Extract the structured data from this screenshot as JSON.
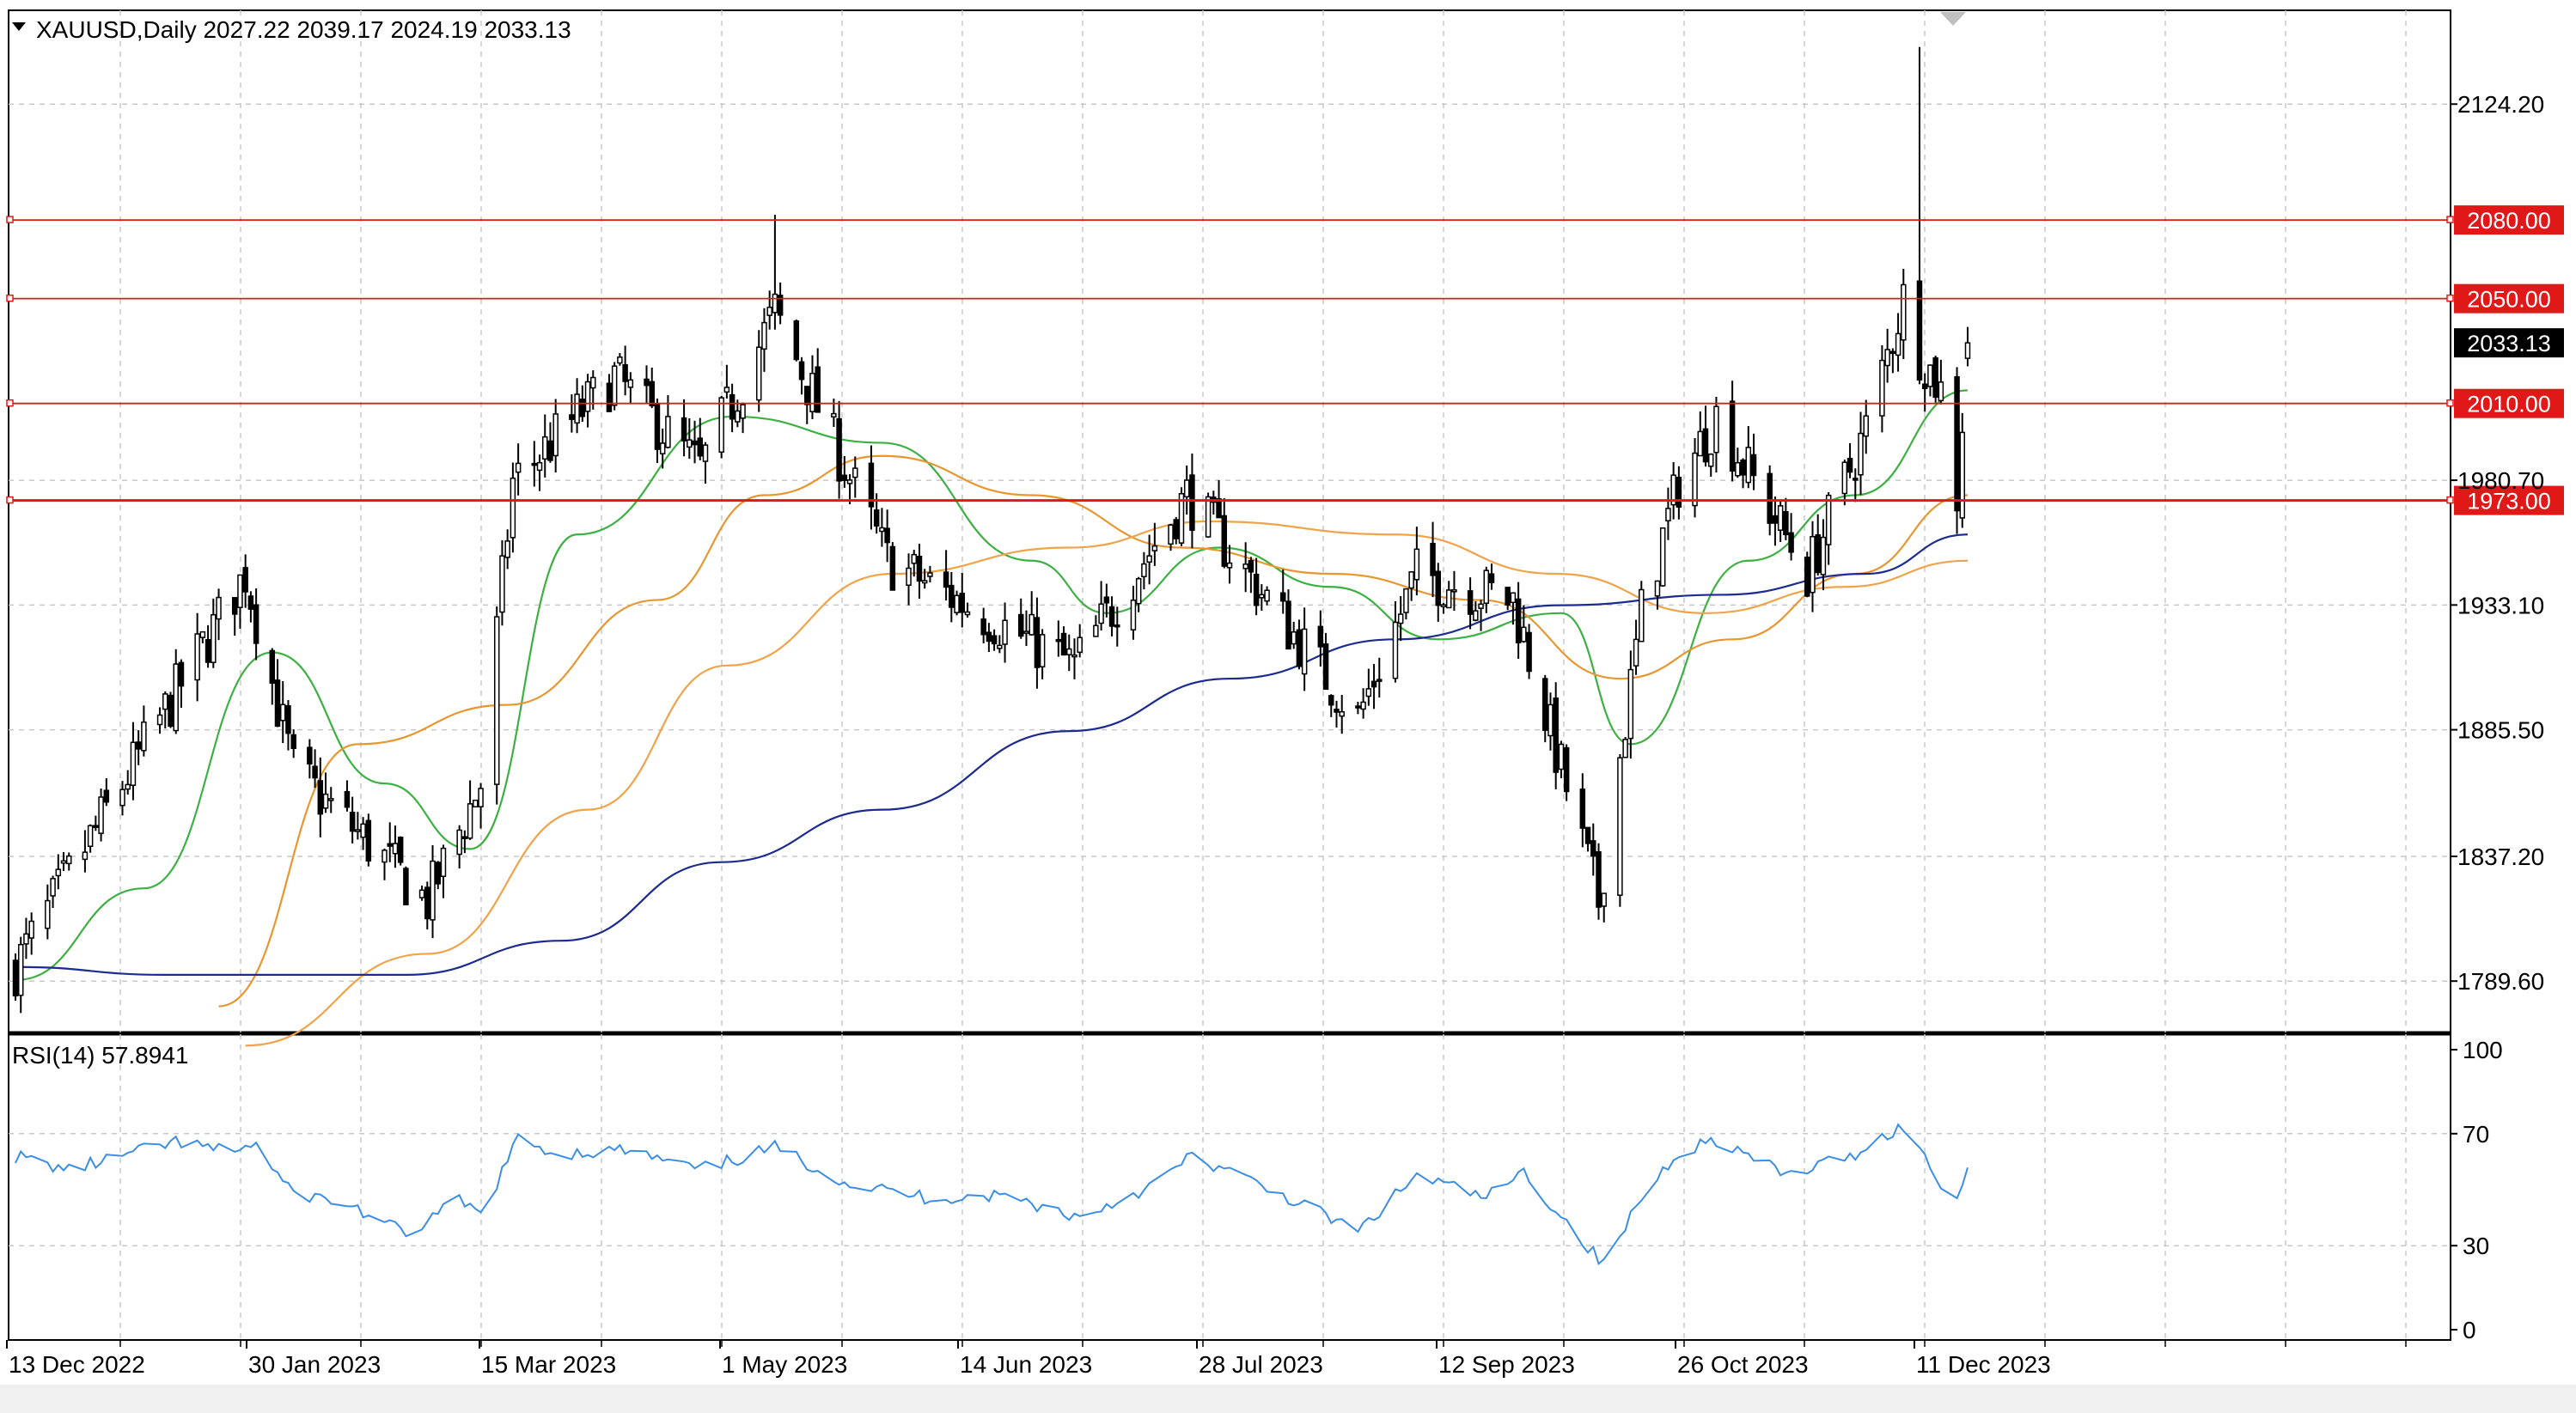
{
  "header": {
    "symbol_line": "XAUUSD,Daily  2027.22 2039.17 2024.19 2033.13"
  },
  "rsi_header": {
    "label": "RSI(14) 57.8941"
  },
  "colors": {
    "candle": "#000000",
    "sma_fast": "#3cb043",
    "sma_mid": "#e8962f",
    "sma_slow": "#f0a34a",
    "sma_long": "#1c2b8f",
    "level_line": "#e01818",
    "rsi_line": "#3a8ee6",
    "grid": "#c8c8c8"
  },
  "price_axis": {
    "ticks": [
      {
        "value": 2124.2,
        "label": "2124.20"
      },
      {
        "value": 1980.7,
        "label": "1980.70"
      },
      {
        "value": 1933.1,
        "label": "1933.10"
      },
      {
        "value": 1885.5,
        "label": "1885.50"
      },
      {
        "value": 1837.2,
        "label": "1837.20"
      },
      {
        "value": 1789.6,
        "label": "1789.60"
      }
    ],
    "current": {
      "value": 2033.13,
      "label": "2033.13"
    }
  },
  "levels": [
    {
      "value": 2080.0,
      "label": "2080.00"
    },
    {
      "value": 2050.0,
      "label": "2050.00"
    },
    {
      "value": 2010.0,
      "label": "2010.00"
    },
    {
      "value": 1973.0,
      "label": "1973.00"
    }
  ],
  "rsi_axis": {
    "ticks": [
      {
        "value": 100,
        "label": "100"
      },
      {
        "value": 70,
        "label": "70"
      },
      {
        "value": 30,
        "label": "30"
      },
      {
        "value": 0,
        "label": "0"
      }
    ]
  },
  "date_axis": {
    "ticks": [
      {
        "label": "13 Dec 2022"
      },
      {
        "label": "30 Jan 2023"
      },
      {
        "label": "15 Mar 2023"
      },
      {
        "label": "1 May 2023"
      },
      {
        "label": "14 Jun 2023"
      },
      {
        "label": "28 Jul 2023"
      },
      {
        "label": "12 Sep 2023"
      },
      {
        "label": "26 Oct 2023"
      },
      {
        "label": "11 Dec 2023"
      }
    ]
  },
  "chart_data": {
    "type": "candlestick",
    "symbol": "XAUUSD",
    "timeframe": "Daily",
    "ohlc_last": {
      "open": 2027.22,
      "high": 2039.17,
      "low": 2024.19,
      "close": 2033.13
    },
    "ylim": [
      1770,
      2160
    ],
    "x_start": "2022-12-13",
    "x_end": "2023-12-13",
    "close_anchors": [
      {
        "date": "2022-12-13",
        "close": 1795
      },
      {
        "date": "2023-01-25",
        "close": 1945
      },
      {
        "date": "2023-02-03",
        "close": 1870
      },
      {
        "date": "2023-02-28",
        "close": 1820
      },
      {
        "date": "2023-03-10",
        "close": 1865
      },
      {
        "date": "2023-03-16",
        "close": 1980
      },
      {
        "date": "2023-04-04",
        "close": 2020
      },
      {
        "date": "2023-04-20",
        "close": 1985
      },
      {
        "date": "2023-05-04",
        "close": 2045
      },
      {
        "date": "2023-05-25",
        "close": 1950
      },
      {
        "date": "2023-06-29",
        "close": 1910
      },
      {
        "date": "2023-07-20",
        "close": 1975
      },
      {
        "date": "2023-08-21",
        "close": 1890
      },
      {
        "date": "2023-09-01",
        "close": 1945
      },
      {
        "date": "2023-09-19",
        "close": 1935
      },
      {
        "date": "2023-10-05",
        "close": 1820
      },
      {
        "date": "2023-10-13",
        "close": 1930
      },
      {
        "date": "2023-10-20",
        "close": 1980
      },
      {
        "date": "2023-10-27",
        "close": 2005
      },
      {
        "date": "2023-11-13",
        "close": 1945
      },
      {
        "date": "2023-11-24",
        "close": 2000
      },
      {
        "date": "2023-12-01",
        "close": 2050
      },
      {
        "date": "2023-12-04",
        "close": 2030
      },
      {
        "date": "2023-12-08",
        "close": 2015
      },
      {
        "date": "2023-12-11",
        "close": 1975
      },
      {
        "date": "2023-12-13",
        "close": 2033
      }
    ],
    "moving_averages": [
      {
        "color": "#3cb043",
        "points": [
          [
            "2022-12-13",
            1790
          ],
          [
            "2023-01-06",
            1825
          ],
          [
            "2023-01-30",
            1915
          ],
          [
            "2023-02-20",
            1865
          ],
          [
            "2023-03-08",
            1840
          ],
          [
            "2023-03-28",
            1960
          ],
          [
            "2023-04-26",
            2005
          ],
          [
            "2023-05-24",
            1995
          ],
          [
            "2023-06-21",
            1950
          ],
          [
            "2023-07-05",
            1930
          ],
          [
            "2023-07-26",
            1955
          ],
          [
            "2023-08-16",
            1940
          ],
          [
            "2023-09-05",
            1920
          ],
          [
            "2023-09-28",
            1930
          ],
          [
            "2023-10-11",
            1880
          ],
          [
            "2023-11-02",
            1950
          ],
          [
            "2023-11-22",
            1975
          ],
          [
            "2023-12-13",
            2015
          ]
        ]
      },
      {
        "color": "#e8962f",
        "points": [
          [
            "2023-01-20",
            1780
          ],
          [
            "2023-02-15",
            1880
          ],
          [
            "2023-03-15",
            1895
          ],
          [
            "2023-04-12",
            1935
          ],
          [
            "2023-05-02",
            1975
          ],
          [
            "2023-05-24",
            1990
          ],
          [
            "2023-06-21",
            1975
          ],
          [
            "2023-07-19",
            1955
          ],
          [
            "2023-08-16",
            1945
          ],
          [
            "2023-09-13",
            1935
          ],
          [
            "2023-10-09",
            1905
          ],
          [
            "2023-10-30",
            1920
          ],
          [
            "2023-11-22",
            1945
          ],
          [
            "2023-12-13",
            1975
          ]
        ]
      },
      {
        "color": "#f0a34a",
        "points": [
          [
            "2023-01-25",
            1765
          ],
          [
            "2023-02-28",
            1800
          ],
          [
            "2023-03-30",
            1855
          ],
          [
            "2023-04-25",
            1910
          ],
          [
            "2023-05-26",
            1945
          ],
          [
            "2023-06-28",
            1955
          ],
          [
            "2023-07-24",
            1965
          ],
          [
            "2023-08-28",
            1960
          ],
          [
            "2023-09-27",
            1945
          ],
          [
            "2023-10-25",
            1930
          ],
          [
            "2023-11-20",
            1940
          ],
          [
            "2023-12-13",
            1950
          ]
        ]
      },
      {
        "color": "#1c2b8f",
        "points": [
          [
            "2022-12-13",
            1795
          ],
          [
            "2023-01-10",
            1792
          ],
          [
            "2023-02-24",
            1792
          ],
          [
            "2023-03-25",
            1805
          ],
          [
            "2023-04-24",
            1835
          ],
          [
            "2023-05-24",
            1855
          ],
          [
            "2023-06-28",
            1885
          ],
          [
            "2023-07-28",
            1905
          ],
          [
            "2023-08-28",
            1920
          ],
          [
            "2023-09-28",
            1933
          ],
          [
            "2023-10-28",
            1937
          ],
          [
            "2023-11-24",
            1945
          ],
          [
            "2023-12-13",
            1960
          ]
        ]
      }
    ],
    "rsi": {
      "period": 14,
      "value": 57.8941,
      "ylim": [
        0,
        100
      ],
      "anchors": [
        {
          "date": "2022-12-13",
          "value": 62
        },
        {
          "date": "2022-12-23",
          "value": 57
        },
        {
          "date": "2023-01-04",
          "value": 63
        },
        {
          "date": "2023-01-12",
          "value": 67
        },
        {
          "date": "2023-01-20",
          "value": 64
        },
        {
          "date": "2023-01-27",
          "value": 66
        },
        {
          "date": "2023-02-02",
          "value": 50
        },
        {
          "date": "2023-02-14",
          "value": 44
        },
        {
          "date": "2023-02-24",
          "value": 34
        },
        {
          "date": "2023-03-06",
          "value": 46
        },
        {
          "date": "2023-03-10",
          "value": 41
        },
        {
          "date": "2023-03-17",
          "value": 68
        },
        {
          "date": "2023-03-24",
          "value": 63
        },
        {
          "date": "2023-04-06",
          "value": 64
        },
        {
          "date": "2023-04-20",
          "value": 57
        },
        {
          "date": "2023-05-04",
          "value": 65
        },
        {
          "date": "2023-05-18",
          "value": 52
        },
        {
          "date": "2023-06-02",
          "value": 47
        },
        {
          "date": "2023-06-16",
          "value": 48
        },
        {
          "date": "2023-06-30",
          "value": 40
        },
        {
          "date": "2023-07-14",
          "value": 52
        },
        {
          "date": "2023-07-21",
          "value": 62
        },
        {
          "date": "2023-08-07",
          "value": 48
        },
        {
          "date": "2023-08-21",
          "value": 35
        },
        {
          "date": "2023-09-01",
          "value": 55
        },
        {
          "date": "2023-09-14",
          "value": 47
        },
        {
          "date": "2023-09-21",
          "value": 56
        },
        {
          "date": "2023-10-06",
          "value": 23
        },
        {
          "date": "2023-10-13",
          "value": 47
        },
        {
          "date": "2023-10-20",
          "value": 64
        },
        {
          "date": "2023-10-27",
          "value": 68
        },
        {
          "date": "2023-11-09",
          "value": 55
        },
        {
          "date": "2023-11-21",
          "value": 62
        },
        {
          "date": "2023-12-01",
          "value": 73
        },
        {
          "date": "2023-12-08",
          "value": 52
        },
        {
          "date": "2023-12-11",
          "value": 47
        },
        {
          "date": "2023-12-13",
          "value": 58
        }
      ]
    }
  }
}
